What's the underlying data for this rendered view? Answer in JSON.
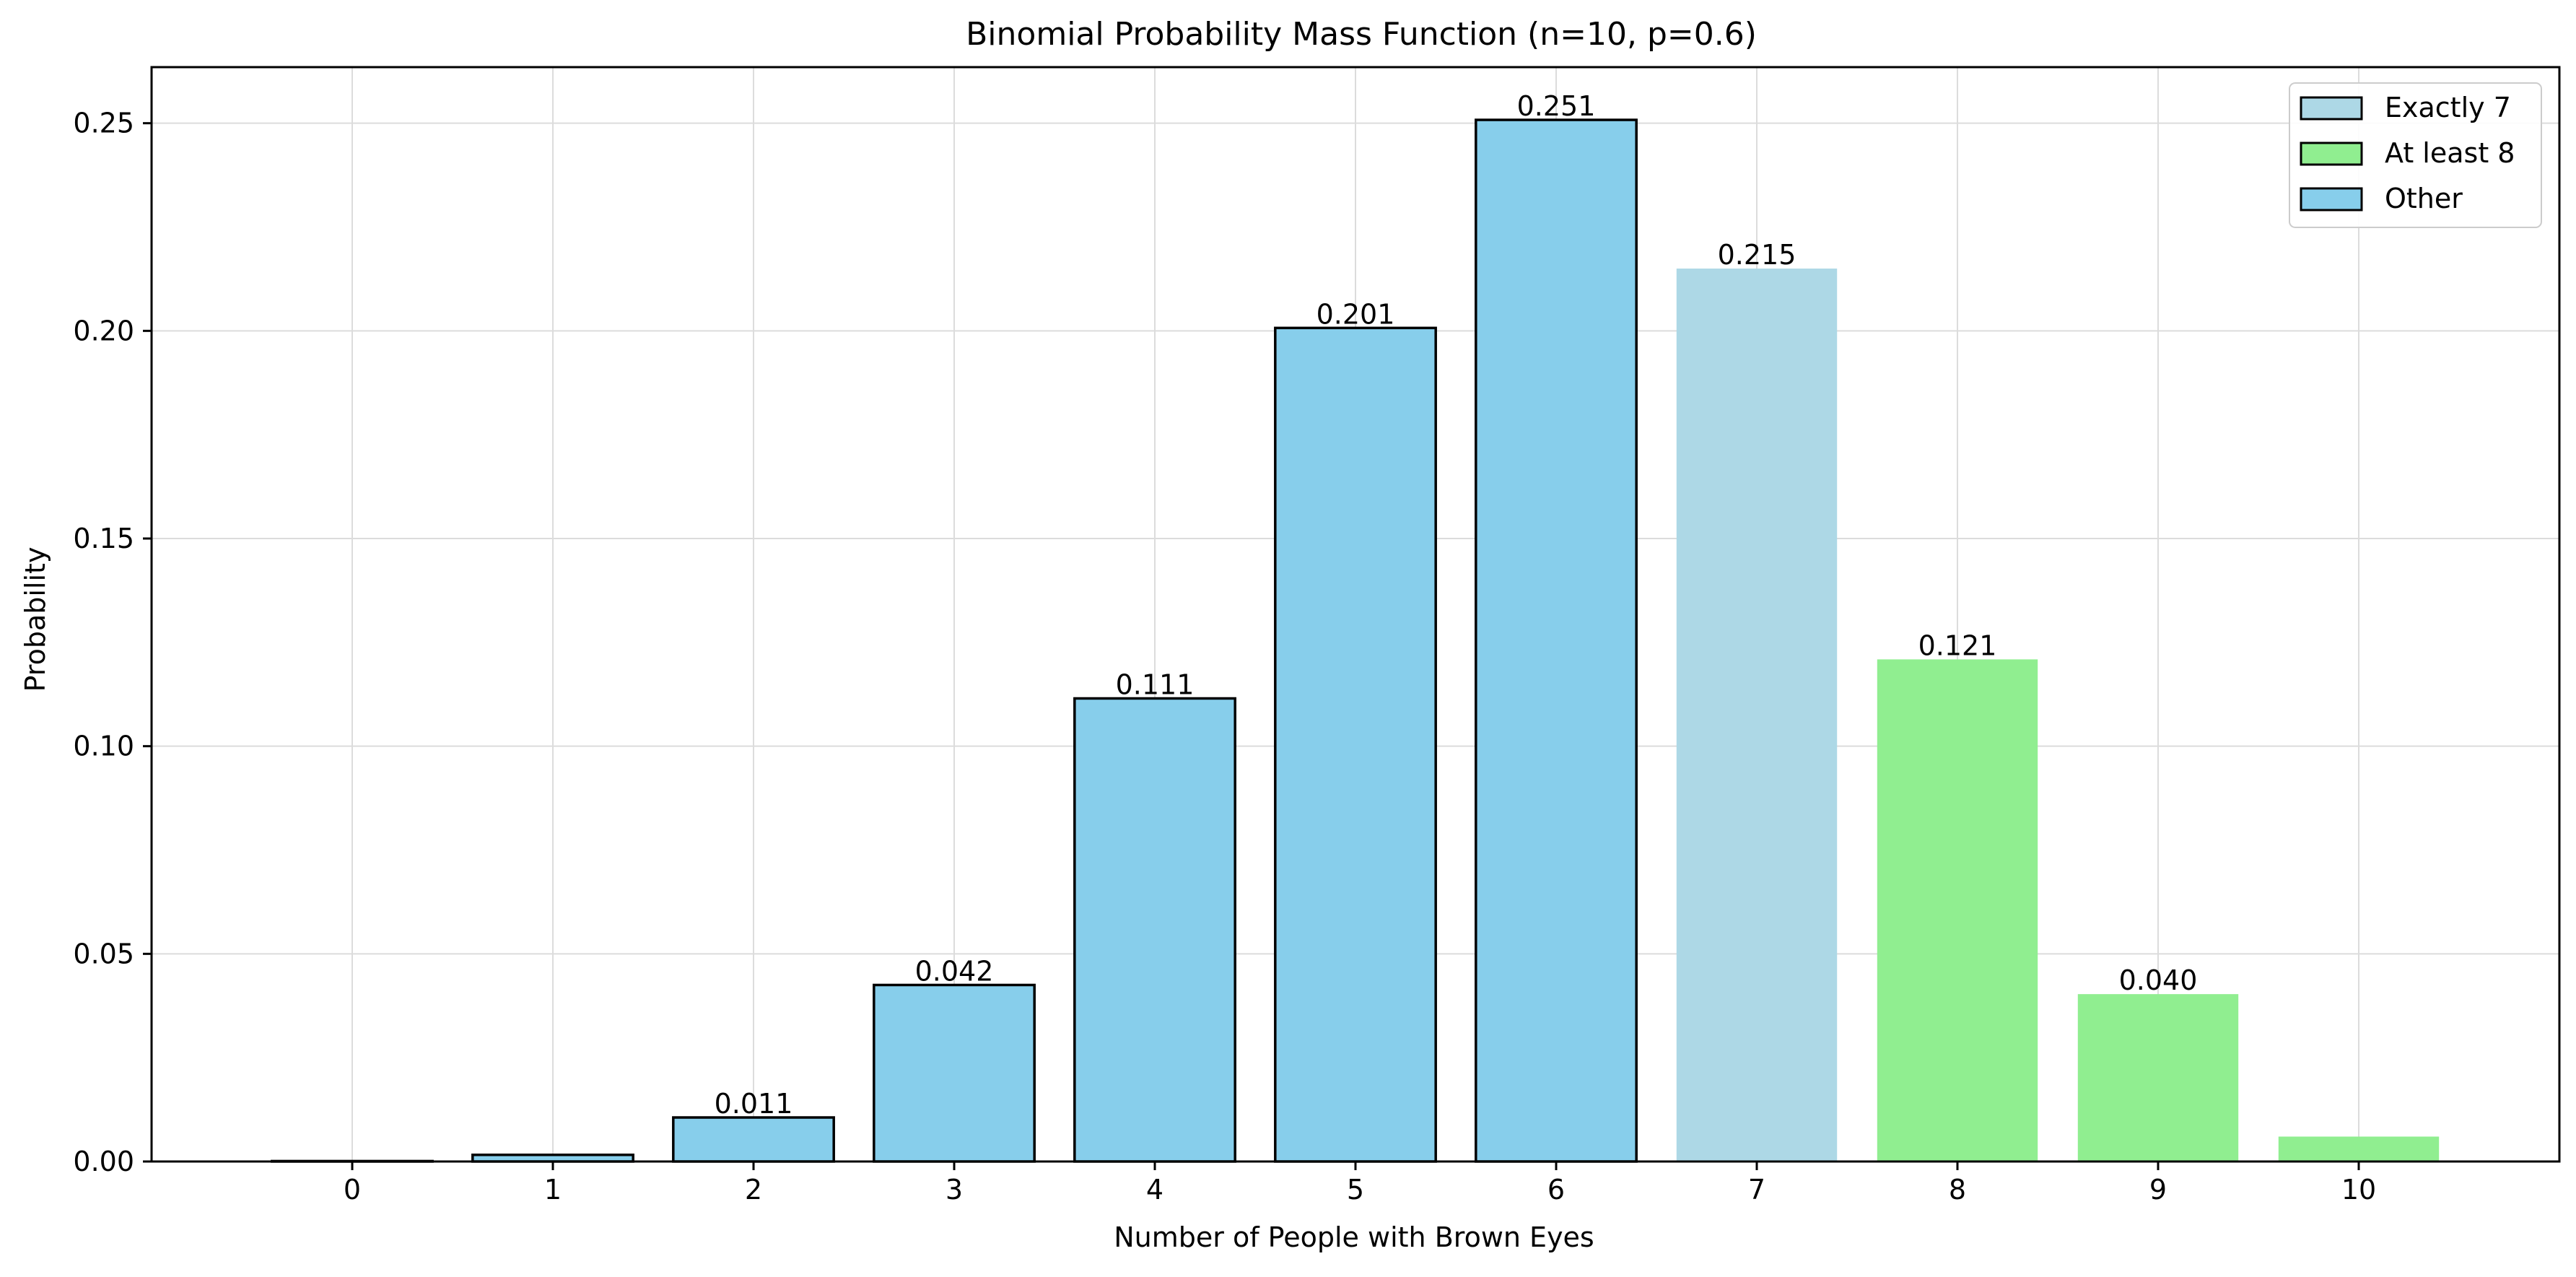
{
  "chart_data": {
    "type": "bar",
    "title": "Binomial Probability Mass Function (n=10, p=0.6)",
    "xlabel": "Number of People with Brown Eyes",
    "ylabel": "Probability",
    "ylim": [
      0,
      0.2635
    ],
    "xlim": [
      -1,
      11
    ],
    "grid": true,
    "legend_position": "top-right",
    "categories": [
      "0",
      "1",
      "2",
      "3",
      "4",
      "5",
      "6",
      "7",
      "8",
      "9",
      "10"
    ],
    "values": [
      0.0001,
      0.0016,
      0.0106,
      0.0425,
      0.1115,
      0.2007,
      0.2508,
      0.215,
      0.1209,
      0.0403,
      0.006
    ],
    "bar_groups": [
      "Other",
      "Other",
      "Other",
      "Other",
      "Other",
      "Other",
      "Other",
      "Exactly 7",
      "At least 8",
      "At least 8",
      "At least 8"
    ],
    "value_labels": [
      "",
      "",
      "0.011",
      "0.042",
      "0.111",
      "0.201",
      "0.251",
      "0.215",
      "0.121",
      "0.040",
      ""
    ],
    "y_ticks": [
      0,
      0.05,
      0.1,
      0.15,
      0.2,
      0.25
    ],
    "y_tick_labels": [
      "0.00",
      "0.05",
      "0.10",
      "0.15",
      "0.20",
      "0.25"
    ],
    "legend": [
      {
        "label": "Exactly 7",
        "color": "#add8e6"
      },
      {
        "label": "At least 8",
        "color": "#90ee90"
      },
      {
        "label": "Other",
        "color": "#87ceeb"
      }
    ],
    "colors": {
      "Other": "#87ceeb",
      "Exactly 7": "#add8e6",
      "At least 8": "#90ee90"
    }
  }
}
